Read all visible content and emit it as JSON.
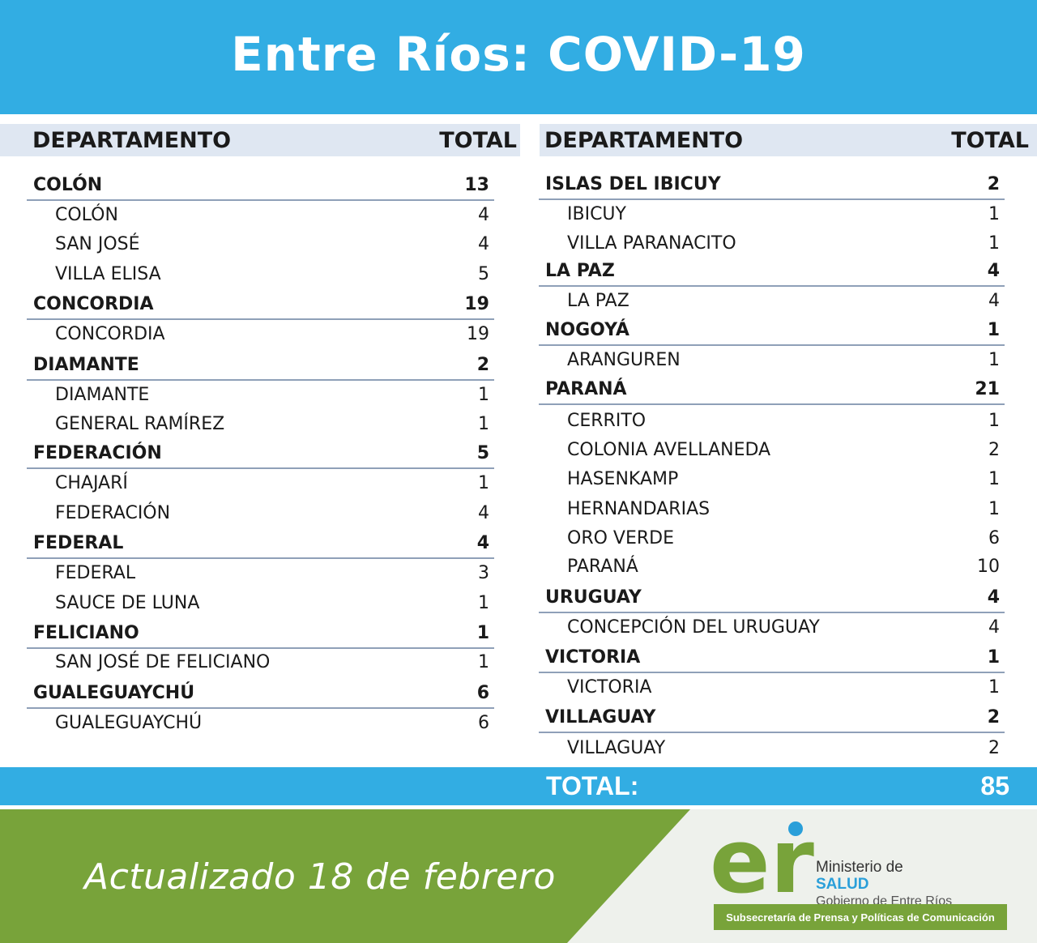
{
  "header": {
    "title": "Entre Ríos: COVID-19"
  },
  "column_headers": {
    "department": "DEPARTAMENTO",
    "total": "TOTAL"
  },
  "left_table": [
    {
      "name": "COLÓN",
      "total": "13",
      "type": "dept"
    },
    {
      "name": "COLÓN",
      "total": "4",
      "type": "sub"
    },
    {
      "name": "SAN JOSÉ",
      "total": "4",
      "type": "sub"
    },
    {
      "name": "VILLA ELISA",
      "total": "5",
      "type": "sub"
    },
    {
      "name": "CONCORDIA",
      "total": "19",
      "type": "dept"
    },
    {
      "name": "CONCORDIA",
      "total": "19",
      "type": "sub"
    },
    {
      "name": "DIAMANTE",
      "total": "2",
      "type": "dept"
    },
    {
      "name": "DIAMANTE",
      "total": "1",
      "type": "sub"
    },
    {
      "name": "GENERAL RAMÍREZ",
      "total": "1",
      "type": "sub"
    },
    {
      "name": "FEDERACIÓN",
      "total": "5",
      "type": "dept"
    },
    {
      "name": "CHAJARÍ",
      "total": "1",
      "type": "sub"
    },
    {
      "name": "FEDERACIÓN",
      "total": "4",
      "type": "sub"
    },
    {
      "name": "FEDERAL",
      "total": "4",
      "type": "dept"
    },
    {
      "name": "FEDERAL",
      "total": "3",
      "type": "sub"
    },
    {
      "name": "SAUCE DE LUNA",
      "total": "1",
      "type": "sub"
    },
    {
      "name": "FELICIANO",
      "total": "1",
      "type": "dept"
    },
    {
      "name": "SAN JOSÉ DE FELICIANO",
      "total": "1",
      "type": "sub"
    },
    {
      "name": "GUALEGUAYCHÚ",
      "total": "6",
      "type": "dept"
    },
    {
      "name": "GUALEGUAYCHÚ",
      "total": "6",
      "type": "sub"
    }
  ],
  "right_table": [
    {
      "name": "ISLAS DEL IBICUY",
      "total": "2",
      "type": "dept"
    },
    {
      "name": "IBICUY",
      "total": "1",
      "type": "sub"
    },
    {
      "name": "VILLA PARANACITO",
      "total": "1",
      "type": "sub"
    },
    {
      "name": "LA PAZ",
      "total": "4",
      "type": "dept"
    },
    {
      "name": "LA PAZ",
      "total": "4",
      "type": "sub"
    },
    {
      "name": "NOGOYÁ",
      "total": "1",
      "type": "dept"
    },
    {
      "name": "ARANGUREN",
      "total": "1",
      "type": "sub"
    },
    {
      "name": "PARANÁ",
      "total": "21",
      "type": "dept"
    },
    {
      "name": "CERRITO",
      "total": "1",
      "type": "sub"
    },
    {
      "name": "COLONIA AVELLANEDA",
      "total": "2",
      "type": "sub"
    },
    {
      "name": "HASENKAMP",
      "total": "1",
      "type": "sub"
    },
    {
      "name": "HERNANDARIAS",
      "total": "1",
      "type": "sub"
    },
    {
      "name": "ORO VERDE",
      "total": "6",
      "type": "sub"
    },
    {
      "name": "PARANÁ",
      "total": "10",
      "type": "sub"
    },
    {
      "name": "URUGUAY",
      "total": "4",
      "type": "dept"
    },
    {
      "name": "CONCEPCIÓN DEL URUGUAY",
      "total": "4",
      "type": "sub"
    },
    {
      "name": "VICTORIA",
      "total": "1",
      "type": "dept"
    },
    {
      "name": "VICTORIA",
      "total": "1",
      "type": "sub"
    },
    {
      "name": "VILLAGUAY",
      "total": "2",
      "type": "dept"
    },
    {
      "name": "VILLAGUAY",
      "total": "2",
      "type": "sub"
    }
  ],
  "grand_total": {
    "label": "TOTAL:",
    "value": "85"
  },
  "footer": {
    "updated": "Actualizado 18 de febrero",
    "logo_text": "er",
    "ministry_line1": "Ministerio de",
    "ministry_line2": "SALUD",
    "ministry_line3": "Gobierno de Entre Ríos",
    "subsecretaria": "Subsecretaría de Prensa y Políticas de Comunicación"
  },
  "colors": {
    "header_blue": "#32ade3",
    "column_header_bg": "#dfe7f2",
    "footer_green": "#78a33a",
    "footer_bg": "#eef1ec",
    "salud_blue": "#2a9fd9"
  }
}
